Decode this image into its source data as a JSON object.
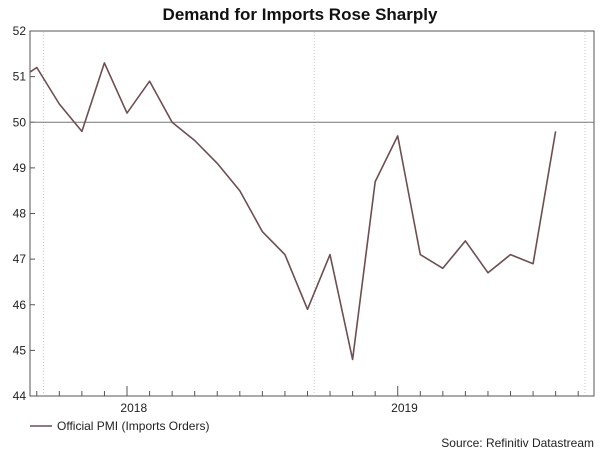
{
  "chart_data": {
    "type": "line",
    "title": "Demand for Imports Rose Sharply",
    "xlabel": "",
    "ylabel": "",
    "ylim": [
      44,
      52
    ],
    "yticks": [
      "44",
      "45",
      "46",
      "47",
      "48",
      "49",
      "50",
      "51",
      "52"
    ],
    "xticks": [
      {
        "label": "2018",
        "at": 1.3
      },
      {
        "label": "2019",
        "at": 13.3
      }
    ],
    "reference_line": 50,
    "grid": false,
    "legend_position": "bottom-left",
    "series": [
      {
        "name": "Official PMI (Imports Orders)",
        "color": "#6e4e50",
        "x": [
          -3.3,
          -3,
          -2,
          -1,
          0,
          1,
          2,
          3,
          4,
          5,
          6,
          7,
          8,
          9,
          10,
          11,
          12,
          13,
          14,
          15,
          16,
          17,
          18,
          19
        ],
        "values": [
          51.1,
          51.2,
          50.4,
          49.8,
          51.3,
          50.2,
          50.9,
          50.0,
          49.6,
          49.1,
          48.5,
          47.6,
          47.1,
          45.9,
          47.1,
          44.8,
          48.7,
          49.7,
          47.1,
          46.8,
          47.4,
          46.7,
          47.1,
          46.9
        ]
      }
    ],
    "last_point": {
      "x": 20,
      "value": 49.8
    },
    "source": "Source: Refinitiv Datastream"
  }
}
